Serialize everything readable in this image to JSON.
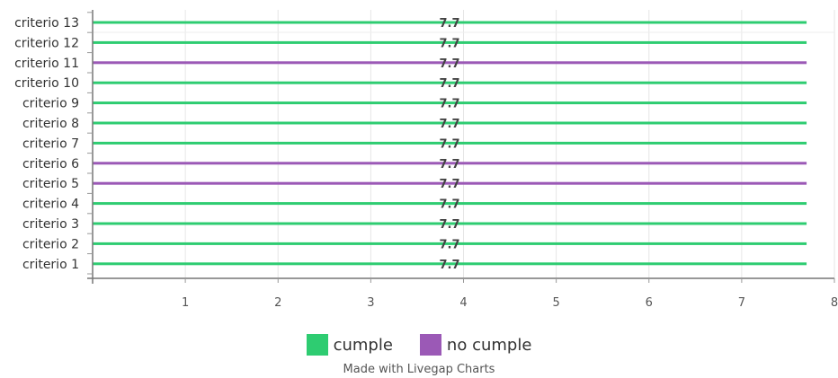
{
  "chart_data": {
    "type": "bar",
    "orientation": "horizontal",
    "categories": [
      "criterio 13",
      "criterio 12",
      "criterio 11",
      "criterio 10",
      "criterio 9",
      "criterio 8",
      "criterio 7",
      "criterio 6",
      "criterio 5",
      "criterio 4",
      "criterio 3",
      "criterio 2",
      "criterio 1"
    ],
    "values": [
      7.7,
      7.7,
      7.7,
      7.7,
      7.7,
      7.7,
      7.7,
      7.7,
      7.7,
      7.7,
      7.7,
      7.7,
      7.7
    ],
    "series_assignment": [
      "cumple",
      "cumple",
      "no cumple",
      "cumple",
      "cumple",
      "cumple",
      "cumple",
      "no cumple",
      "no cumple",
      "cumple",
      "cumple",
      "cumple",
      "cumple"
    ],
    "data_labels": [
      "7.7",
      "7.7",
      "7.7",
      "7.7",
      "7.7",
      "7.7",
      "7.7",
      "7.7",
      "7.7",
      "7.7",
      "7.7",
      "7.7",
      "7.7"
    ],
    "series": [
      {
        "name": "cumple",
        "color": "#2ecc71"
      },
      {
        "name": "no cumple",
        "color": "#9b59b6"
      }
    ],
    "xlim": [
      0,
      8
    ],
    "x_ticks": [
      "1",
      "2",
      "3",
      "4",
      "5",
      "6",
      "7",
      "8"
    ],
    "grid": true,
    "legend_position": "bottom"
  },
  "legend": {
    "items": [
      {
        "label": "cumple",
        "color": "#2ecc71"
      },
      {
        "label": "no cumple",
        "color": "#9b59b6"
      }
    ]
  },
  "credit": "Made with Livegap Charts"
}
